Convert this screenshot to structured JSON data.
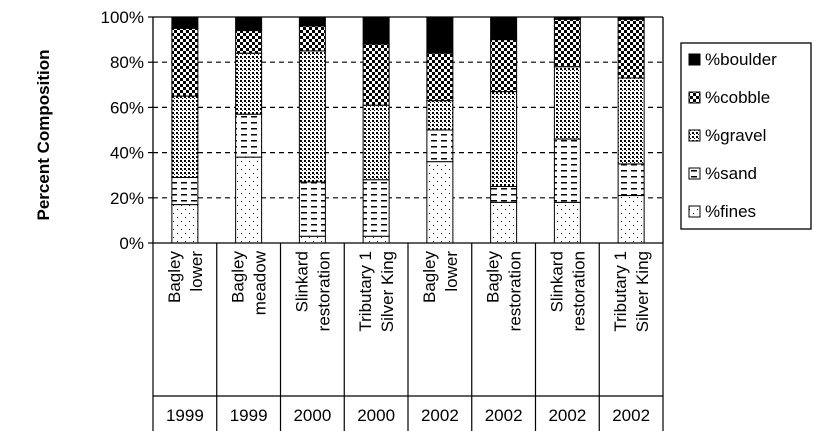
{
  "chart_data": {
    "type": "bar",
    "stacked": true,
    "normalized": true,
    "title": "",
    "ylabel": "Percent Composition",
    "xlabel": "",
    "ylim": [
      0,
      100
    ],
    "yticks": [
      "0%",
      "20%",
      "40%",
      "60%",
      "80%",
      "100%"
    ],
    "grid": "horizontal dashed",
    "legend_position": "right",
    "categories": [
      {
        "site": [
          "Bagley",
          "lower"
        ],
        "year": "1999"
      },
      {
        "site": [
          "Bagley",
          "meadow"
        ],
        "year": "1999"
      },
      {
        "site": [
          "Slinkard",
          "restoration"
        ],
        "year": "2000"
      },
      {
        "site": [
          "Tributary 1",
          "Silver King"
        ],
        "year": "2000"
      },
      {
        "site": [
          "Bagley",
          "lower"
        ],
        "year": "2002"
      },
      {
        "site": [
          "Bagley",
          "restoration"
        ],
        "year": "2002"
      },
      {
        "site": [
          "Slinkard",
          "restoration"
        ],
        "year": "2002"
      },
      {
        "site": [
          "Tributary 1",
          "Silver King"
        ],
        "year": "2002"
      }
    ],
    "series": [
      {
        "name": "%fines",
        "pattern": "dots-sparse",
        "values": [
          17,
          38,
          3,
          3,
          36,
          18,
          18,
          21
        ]
      },
      {
        "name": "%sand",
        "pattern": "dashes",
        "values": [
          12,
          19,
          24,
          25,
          14,
          7,
          28,
          14
        ]
      },
      {
        "name": "%gravel",
        "pattern": "dots-dense",
        "values": [
          36,
          27,
          58,
          33,
          13,
          42,
          32,
          38
        ]
      },
      {
        "name": "%cobble",
        "pattern": "checker",
        "values": [
          30,
          10,
          11,
          27,
          21,
          23,
          21,
          26
        ]
      },
      {
        "name": "%boulder",
        "pattern": "solid",
        "values": [
          5,
          6,
          4,
          12,
          16,
          10,
          1,
          1
        ]
      }
    ],
    "legend_order": [
      "%boulder",
      "%cobble",
      "%gravel",
      "%sand",
      "%fines"
    ]
  }
}
